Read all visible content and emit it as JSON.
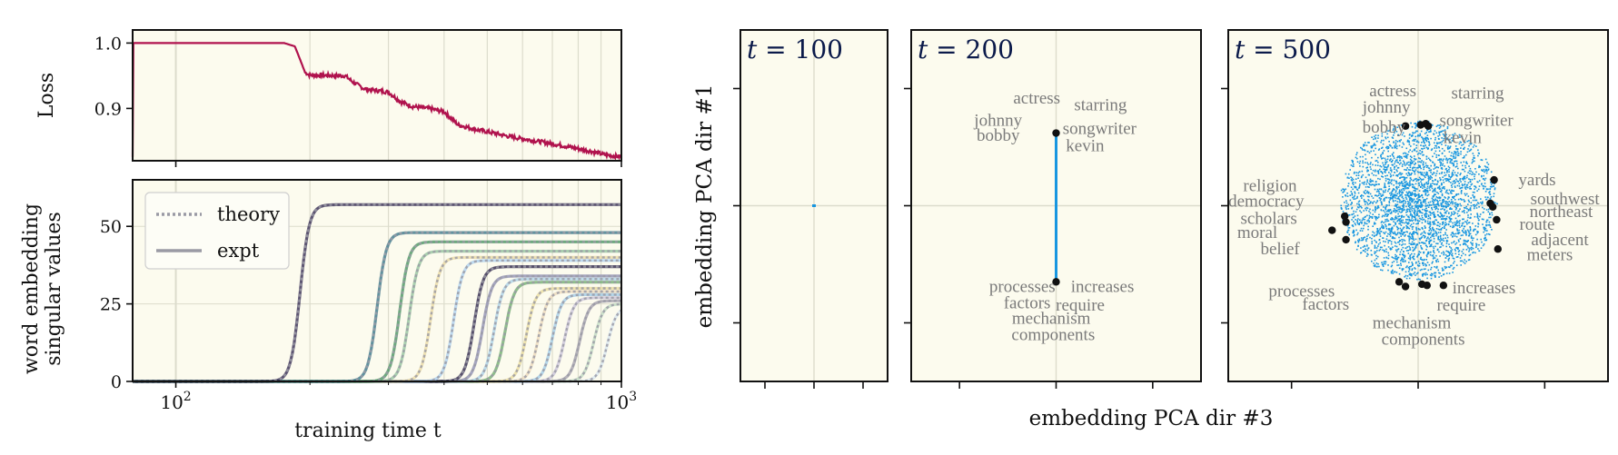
{
  "colors": {
    "panel_bg": "#fcfbee",
    "grid": "#dcdccc",
    "loss_line": "#b0124d",
    "scatter": "#1896e0",
    "word_label": "#7a7a7a",
    "dot": "#111111"
  },
  "chart_data": [
    {
      "type": "line",
      "id": "loss",
      "ylabel": "Loss",
      "x_scale": "log",
      "xlim": [
        80,
        1000
      ],
      "ylim": [
        0.82,
        1.02
      ],
      "yticks": [
        {
          "v": 0.9,
          "label": "0.9"
        },
        {
          "v": 1.0,
          "label": "1.0"
        }
      ],
      "series": [
        {
          "x": [
            80,
            100,
            150,
            175,
            185,
            190,
            195,
            200,
            240,
            250,
            265,
            300,
            320,
            340,
            370,
            400,
            430,
            470,
            520,
            560,
            620,
            700,
            780,
            860,
            920,
            1000
          ],
          "y": [
            1.0,
            1.0,
            1.0,
            1.0,
            0.995,
            0.975,
            0.955,
            0.951,
            0.95,
            0.94,
            0.93,
            0.925,
            0.91,
            0.903,
            0.9,
            0.895,
            0.875,
            0.868,
            0.862,
            0.857,
            0.852,
            0.846,
            0.84,
            0.834,
            0.829,
            0.826
          ]
        }
      ]
    },
    {
      "type": "line",
      "id": "singular-values",
      "ylabel": "word embedding singular values",
      "xlabel": "training time t",
      "x_scale": "log",
      "xlim": [
        80,
        1000
      ],
      "ylim": [
        0,
        65
      ],
      "yticks": [
        {
          "v": 0,
          "label": "0"
        },
        {
          "v": 25,
          "label": "25"
        },
        {
          "v": 50,
          "label": "50"
        }
      ],
      "xticks": [
        {
          "v": 100,
          "base": "10",
          "exp": "2"
        },
        {
          "v": 1000,
          "base": "10",
          "exp": "3"
        }
      ],
      "legend": {
        "position": "top-left",
        "entries": [
          {
            "label": "theory",
            "style": "dotted"
          },
          {
            "label": "expt",
            "style": "solid"
          }
        ]
      },
      "series": [
        {
          "t0": 190,
          "plateau": 57,
          "color": "#2a1f4a"
        },
        {
          "t0": 283,
          "plateau": 48,
          "color": "#2f6f84"
        },
        {
          "t0": 318,
          "plateau": 45,
          "color": "#3f8f5a"
        },
        {
          "t0": 334,
          "plateau": 42,
          "color": "#8fc09a"
        },
        {
          "t0": 373,
          "plateau": 40,
          "color": "#ead8a0"
        },
        {
          "t0": 420,
          "plateau": 39,
          "color": "#a9cff0"
        },
        {
          "t0": 467,
          "plateau": 37,
          "color": "#221840"
        },
        {
          "t0": 488,
          "plateau": 34,
          "color": "#8a8ab0"
        },
        {
          "t0": 518,
          "plateau": 33,
          "color": "#a8d0e8"
        },
        {
          "t0": 548,
          "plateau": 32,
          "color": "#6aaa6a"
        },
        {
          "t0": 612,
          "plateau": 30,
          "color": "#eadb9a"
        },
        {
          "t0": 652,
          "plateau": 29,
          "color": "#ebd7b8"
        },
        {
          "t0": 700,
          "plateau": 28,
          "color": "#9ecae8"
        },
        {
          "t0": 745,
          "plateau": 27,
          "color": "#c7c0d8"
        },
        {
          "t0": 806,
          "plateau": 26,
          "color": "#9e9aa8"
        },
        {
          "t0": 866,
          "plateau": 25,
          "color": "#bdd8c0"
        },
        {
          "t0": 930,
          "plateau": 24,
          "color": "#d7e5f0"
        }
      ]
    },
    {
      "type": "scatter",
      "id": "pca-t100",
      "title": "t = 100",
      "title_var": "t",
      "title_value": "= 100",
      "xlim": [
        -1.5,
        1.5
      ],
      "ylim": [
        -1.5,
        1.5
      ],
      "points": [
        {
          "x": 0,
          "y": 0
        }
      ],
      "labels": []
    },
    {
      "type": "scatter",
      "id": "pca-t200",
      "title": "t = 200",
      "title_var": "t",
      "title_value": "= 200",
      "xlim": [
        -1.5,
        1.5
      ],
      "ylim": [
        -1.5,
        1.5
      ],
      "segment": {
        "x": 0,
        "y_from": -0.65,
        "y_to": 0.62
      },
      "points": [
        {
          "x": 0,
          "y": 0.62
        },
        {
          "x": 0,
          "y": -0.65
        }
      ],
      "labels": [
        {
          "text": "actress",
          "x": -0.2,
          "y": 0.92
        },
        {
          "text": "starring",
          "x": 0.46,
          "y": 0.86
        },
        {
          "text": "johnny",
          "x": -0.6,
          "y": 0.73
        },
        {
          "text": "bobby",
          "x": -0.6,
          "y": 0.6
        },
        {
          "text": "songwriter",
          "x": 0.45,
          "y": 0.66
        },
        {
          "text": "kevin",
          "x": 0.3,
          "y": 0.51
        },
        {
          "text": "processes",
          "x": -0.35,
          "y": -0.69
        },
        {
          "text": "increases",
          "x": 0.48,
          "y": -0.69
        },
        {
          "text": "factors",
          "x": -0.3,
          "y": -0.83
        },
        {
          "text": "require",
          "x": 0.25,
          "y": -0.85
        },
        {
          "text": "mechanism",
          "x": -0.05,
          "y": -0.96
        },
        {
          "text": "components",
          "x": -0.03,
          "y": -1.1
        }
      ]
    },
    {
      "type": "scatter",
      "id": "pca-t500",
      "title": "t = 500",
      "title_var": "t",
      "title_value": "= 500",
      "xlabel": "embedding PCA dir #3",
      "ylabel": "embedding PCA dir #1",
      "xlim": [
        -1.5,
        1.5
      ],
      "ylim": [
        -1.5,
        1.5
      ],
      "cloud": {
        "x_center": 0,
        "y_center": 0.05,
        "rx": 0.62,
        "ry": 0.68,
        "count": 3200
      },
      "points": [
        {
          "x": -0.1,
          "y": 0.68
        },
        {
          "x": 0.02,
          "y": 0.69
        },
        {
          "x": 0.06,
          "y": 0.7
        },
        {
          "x": 0.08,
          "y": 0.68
        },
        {
          "x": 0.6,
          "y": 0.22
        },
        {
          "x": 0.57,
          "y": 0.02
        },
        {
          "x": 0.59,
          "y": -0.01
        },
        {
          "x": 0.62,
          "y": -0.12
        },
        {
          "x": 0.63,
          "y": -0.37
        },
        {
          "x": -0.58,
          "y": -0.09
        },
        {
          "x": -0.57,
          "y": -0.14
        },
        {
          "x": -0.68,
          "y": -0.21
        },
        {
          "x": -0.57,
          "y": -0.29
        },
        {
          "x": -0.15,
          "y": -0.65
        },
        {
          "x": -0.1,
          "y": -0.69
        },
        {
          "x": 0.03,
          "y": -0.67
        },
        {
          "x": 0.07,
          "y": -0.68
        },
        {
          "x": 0.2,
          "y": -0.68
        }
      ],
      "labels": [
        {
          "text": "actress",
          "x": -0.2,
          "y": 0.98
        },
        {
          "text": "starring",
          "x": 0.47,
          "y": 0.96
        },
        {
          "text": "johnny",
          "x": -0.25,
          "y": 0.84
        },
        {
          "text": "songwriter",
          "x": 0.46,
          "y": 0.73
        },
        {
          "text": "bobby",
          "x": -0.27,
          "y": 0.67
        },
        {
          "text": "kevin",
          "x": 0.35,
          "y": 0.58
        },
        {
          "text": "religion",
          "x": -1.17,
          "y": 0.17
        },
        {
          "text": "yards",
          "x": 0.94,
          "y": 0.22
        },
        {
          "text": "democracy",
          "x": -1.2,
          "y": 0.04
        },
        {
          "text": "southwest",
          "x": 1.16,
          "y": 0.06
        },
        {
          "text": "northeast",
          "x": 1.13,
          "y": -0.05
        },
        {
          "text": "scholars",
          "x": -1.18,
          "y": -0.11
        },
        {
          "text": "route",
          "x": 0.94,
          "y": -0.16
        },
        {
          "text": "moral",
          "x": -1.27,
          "y": -0.23
        },
        {
          "text": "adjacent",
          "x": 1.12,
          "y": -0.29
        },
        {
          "text": "belief",
          "x": -1.09,
          "y": -0.37
        },
        {
          "text": "meters",
          "x": 1.04,
          "y": -0.42
        },
        {
          "text": "processes",
          "x": -0.92,
          "y": -0.73
        },
        {
          "text": "increases",
          "x": 0.52,
          "y": -0.7
        },
        {
          "text": "factors",
          "x": -0.73,
          "y": -0.84
        },
        {
          "text": "require",
          "x": 0.34,
          "y": -0.85
        },
        {
          "text": "mechanism",
          "x": -0.05,
          "y": -1.0
        },
        {
          "text": "components",
          "x": 0.04,
          "y": -1.14
        }
      ]
    }
  ]
}
